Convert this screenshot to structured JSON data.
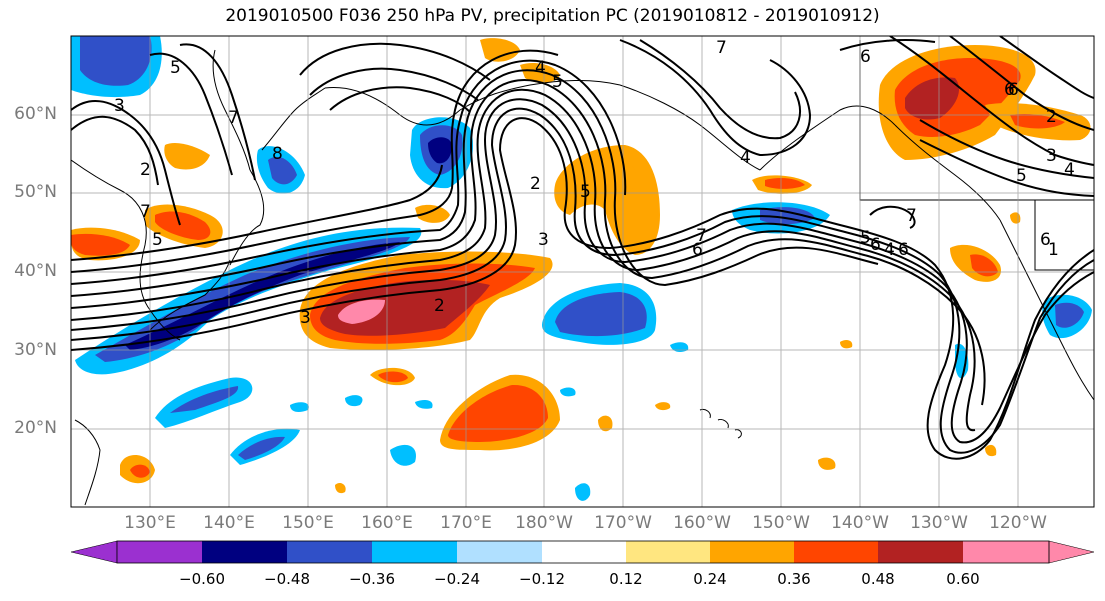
{
  "title": "2019010500 F036 250 hPa PV, precipitation PC (2019010812 - 2019010912)",
  "map": {
    "region": "North Pacific",
    "lat_labels": [
      "60°N",
      "50°N",
      "40°N",
      "30°N",
      "20°N"
    ],
    "lon_labels": [
      "130°E",
      "140°E",
      "150°E",
      "160°E",
      "170°E",
      "180°W",
      "170°W",
      "160°W",
      "150°W",
      "140°W",
      "130°W",
      "120°W"
    ],
    "gridlines": true,
    "contour_labels": [
      "5",
      "3",
      "2",
      "7",
      "4",
      "5",
      "6",
      "7",
      "6",
      "2",
      "3",
      "4",
      "5",
      "6",
      "4",
      "6",
      "7",
      "3",
      "2",
      "8",
      "2",
      "3",
      "5",
      "6",
      "7",
      "6",
      "5",
      "4",
      "6",
      "7",
      "5",
      "1"
    ]
  },
  "colorbar": {
    "ticks": [
      "−0.60",
      "−0.48",
      "−0.36",
      "−0.24",
      "−0.12",
      "0.12",
      "0.24",
      "0.36",
      "0.48",
      "0.60"
    ],
    "colors": [
      "#9b30d0",
      "#000080",
      "#3050c8",
      "#00bfff",
      "#b0e0ff",
      "#ffffff",
      "#ffe680",
      "#ffa500",
      "#ff4500",
      "#b22222",
      "#ff88aa"
    ],
    "extend": "both"
  },
  "chart_data": {
    "type": "heatmap",
    "title": "2019010500 F036 250 hPa PV, precipitation PC (2019010812 - 2019010912)",
    "x_labels": [
      "130°E",
      "140°E",
      "150°E",
      "160°E",
      "170°E",
      "180°W",
      "170°W",
      "160°W",
      "150°W",
      "140°W",
      "130°W",
      "120°W"
    ],
    "y_labels": [
      "60°N",
      "50°N",
      "40°N",
      "30°N",
      "20°N"
    ],
    "levels": [
      -0.6,
      -0.48,
      -0.36,
      -0.24,
      -0.12,
      0.12,
      0.24,
      0.36,
      0.48,
      0.6
    ],
    "contour_field": "250 hPa PV",
    "fill_field": "precipitation PC"
  }
}
